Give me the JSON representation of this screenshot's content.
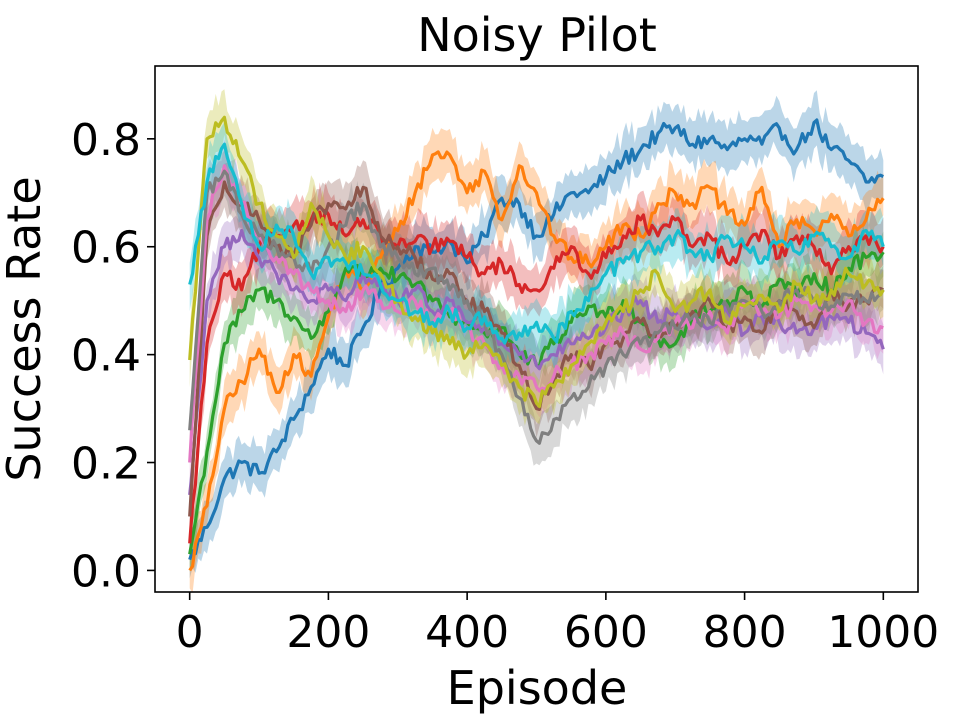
{
  "chart_data": {
    "type": "line",
    "title": "Noisy Pilot",
    "xlabel": "Episode",
    "ylabel": "Success Rate",
    "xlim": [
      -50,
      1050
    ],
    "ylim": [
      -0.04,
      0.935
    ],
    "xticks": [
      0,
      200,
      400,
      600,
      800,
      1000
    ],
    "xtick_labels": [
      "0",
      "200",
      "400",
      "600",
      "800",
      "1000"
    ],
    "yticks": [
      0.0,
      0.2,
      0.4,
      0.6,
      0.8
    ],
    "ytick_labels": [
      "0.0",
      "0.2",
      "0.4",
      "0.6",
      "0.8"
    ],
    "grid": false,
    "legend": "none",
    "series": [
      {
        "color": "#1f77b4",
        "x": [
          0,
          25,
          50,
          75,
          100,
          125,
          150,
          175,
          200,
          225,
          250,
          275,
          300,
          325,
          350,
          375,
          400,
          425,
          450,
          475,
          500,
          525,
          550,
          575,
          600,
          625,
          650,
          675,
          700,
          725,
          750,
          775,
          800,
          825,
          850,
          875,
          900,
          925,
          950,
          975,
          1000
        ],
        "y": [
          0.02,
          0.08,
          0.17,
          0.2,
          0.18,
          0.22,
          0.28,
          0.34,
          0.41,
          0.38,
          0.45,
          0.52,
          0.56,
          0.6,
          0.59,
          0.61,
          0.57,
          0.62,
          0.69,
          0.68,
          0.62,
          0.66,
          0.7,
          0.7,
          0.73,
          0.76,
          0.78,
          0.81,
          0.82,
          0.79,
          0.8,
          0.78,
          0.8,
          0.79,
          0.82,
          0.78,
          0.83,
          0.78,
          0.76,
          0.72,
          0.73
        ]
      },
      {
        "color": "#ff7f0e",
        "x": [
          0,
          25,
          50,
          75,
          100,
          125,
          150,
          175,
          200,
          225,
          250,
          275,
          300,
          325,
          350,
          375,
          400,
          425,
          450,
          475,
          500,
          525,
          550,
          575,
          600,
          625,
          650,
          675,
          700,
          725,
          750,
          775,
          800,
          825,
          850,
          875,
          900,
          925,
          950,
          975,
          1000
        ],
        "y": [
          0.0,
          0.12,
          0.3,
          0.35,
          0.41,
          0.33,
          0.4,
          0.36,
          0.47,
          0.56,
          0.52,
          0.58,
          0.63,
          0.7,
          0.77,
          0.77,
          0.7,
          0.74,
          0.65,
          0.75,
          0.7,
          0.62,
          0.58,
          0.57,
          0.6,
          0.64,
          0.62,
          0.68,
          0.7,
          0.68,
          0.71,
          0.66,
          0.64,
          0.71,
          0.6,
          0.65,
          0.63,
          0.66,
          0.62,
          0.65,
          0.69
        ]
      },
      {
        "color": "#2ca02c",
        "x": [
          0,
          25,
          50,
          75,
          100,
          125,
          150,
          175,
          200,
          225,
          250,
          275,
          300,
          325,
          350,
          375,
          400,
          425,
          450,
          475,
          500,
          525,
          550,
          575,
          600,
          625,
          650,
          675,
          700,
          725,
          750,
          775,
          800,
          825,
          850,
          875,
          900,
          925,
          950,
          975,
          1000
        ],
        "y": [
          0.03,
          0.22,
          0.42,
          0.48,
          0.52,
          0.5,
          0.47,
          0.43,
          0.48,
          0.56,
          0.55,
          0.56,
          0.54,
          0.53,
          0.5,
          0.47,
          0.46,
          0.44,
          0.45,
          0.4,
          0.38,
          0.42,
          0.46,
          0.49,
          0.47,
          0.5,
          0.46,
          0.43,
          0.42,
          0.47,
          0.48,
          0.5,
          0.52,
          0.49,
          0.54,
          0.51,
          0.55,
          0.52,
          0.56,
          0.58,
          0.59
        ]
      },
      {
        "color": "#d62728",
        "x": [
          0,
          25,
          50,
          75,
          100,
          125,
          150,
          175,
          200,
          225,
          250,
          275,
          300,
          325,
          350,
          375,
          400,
          425,
          450,
          475,
          500,
          525,
          550,
          575,
          600,
          625,
          650,
          675,
          700,
          725,
          750,
          775,
          800,
          825,
          850,
          875,
          900,
          925,
          950,
          975,
          1000
        ],
        "y": [
          0.05,
          0.42,
          0.55,
          0.52,
          0.6,
          0.62,
          0.64,
          0.65,
          0.66,
          0.62,
          0.65,
          0.62,
          0.6,
          0.61,
          0.6,
          0.61,
          0.58,
          0.55,
          0.57,
          0.53,
          0.52,
          0.56,
          0.6,
          0.55,
          0.58,
          0.62,
          0.65,
          0.62,
          0.65,
          0.6,
          0.62,
          0.57,
          0.6,
          0.63,
          0.58,
          0.62,
          0.6,
          0.55,
          0.6,
          0.62,
          0.6
        ]
      },
      {
        "color": "#9467bd",
        "x": [
          0,
          25,
          50,
          75,
          100,
          125,
          150,
          175,
          200,
          225,
          250,
          275,
          300,
          325,
          350,
          375,
          400,
          425,
          450,
          475,
          500,
          525,
          550,
          575,
          600,
          625,
          650,
          675,
          700,
          725,
          750,
          775,
          800,
          825,
          850,
          875,
          900,
          925,
          950,
          975,
          1000
        ],
        "y": [
          0.14,
          0.5,
          0.6,
          0.63,
          0.58,
          0.55,
          0.52,
          0.5,
          0.52,
          0.5,
          0.55,
          0.53,
          0.5,
          0.52,
          0.48,
          0.5,
          0.46,
          0.45,
          0.42,
          0.4,
          0.38,
          0.4,
          0.42,
          0.43,
          0.45,
          0.48,
          0.5,
          0.46,
          0.48,
          0.47,
          0.45,
          0.48,
          0.44,
          0.47,
          0.46,
          0.44,
          0.45,
          0.47,
          0.46,
          0.44,
          0.41
        ]
      },
      {
        "color": "#8c564b",
        "x": [
          0,
          25,
          50,
          75,
          100,
          125,
          150,
          175,
          200,
          225,
          250,
          275,
          300,
          325,
          350,
          375,
          400,
          425,
          450,
          475,
          500,
          525,
          550,
          575,
          600,
          625,
          650,
          675,
          700,
          725,
          750,
          775,
          800,
          825,
          850,
          875,
          900,
          925,
          950,
          975,
          1000
        ],
        "y": [
          0.1,
          0.62,
          0.72,
          0.68,
          0.65,
          0.6,
          0.58,
          0.64,
          0.68,
          0.67,
          0.71,
          0.62,
          0.6,
          0.58,
          0.54,
          0.55,
          0.5,
          0.48,
          0.44,
          0.38,
          0.3,
          0.35,
          0.4,
          0.38,
          0.42,
          0.43,
          0.46,
          0.44,
          0.45,
          0.48,
          0.5,
          0.45,
          0.47,
          0.44,
          0.5,
          0.48,
          0.45,
          0.52,
          0.49,
          0.5,
          0.52
        ]
      },
      {
        "color": "#e377c2",
        "x": [
          0,
          25,
          50,
          75,
          100,
          125,
          150,
          175,
          200,
          225,
          250,
          275,
          300,
          325,
          350,
          375,
          400,
          425,
          450,
          475,
          500,
          525,
          550,
          575,
          600,
          625,
          650,
          675,
          700,
          725,
          750,
          775,
          800,
          825,
          850,
          875,
          900,
          925,
          950,
          975,
          1000
        ],
        "y": [
          0.2,
          0.65,
          0.75,
          0.68,
          0.62,
          0.58,
          0.55,
          0.52,
          0.5,
          0.48,
          0.52,
          0.5,
          0.48,
          0.5,
          0.46,
          0.48,
          0.45,
          0.42,
          0.38,
          0.36,
          0.34,
          0.36,
          0.38,
          0.4,
          0.42,
          0.44,
          0.41,
          0.43,
          0.46,
          0.45,
          0.48,
          0.44,
          0.5,
          0.48,
          0.47,
          0.5,
          0.49,
          0.48,
          0.5,
          0.46,
          0.45
        ]
      },
      {
        "color": "#7f7f7f",
        "x": [
          0,
          25,
          50,
          75,
          100,
          125,
          150,
          175,
          200,
          225,
          250,
          275,
          300,
          325,
          350,
          375,
          400,
          425,
          450,
          475,
          500,
          525,
          550,
          575,
          600,
          625,
          650,
          675,
          700,
          725,
          750,
          775,
          800,
          825,
          850,
          875,
          900,
          925,
          950,
          975,
          1000
        ],
        "y": [
          0.26,
          0.7,
          0.74,
          0.66,
          0.62,
          0.6,
          0.58,
          0.55,
          0.6,
          0.64,
          0.68,
          0.6,
          0.58,
          0.55,
          0.56,
          0.52,
          0.5,
          0.46,
          0.4,
          0.32,
          0.24,
          0.28,
          0.32,
          0.34,
          0.38,
          0.4,
          0.42,
          0.44,
          0.45,
          0.47,
          0.46,
          0.49,
          0.5,
          0.48,
          0.5,
          0.52,
          0.5,
          0.49,
          0.51,
          0.5,
          0.52
        ]
      },
      {
        "color": "#bcbd22",
        "x": [
          0,
          25,
          50,
          75,
          100,
          125,
          150,
          175,
          200,
          225,
          250,
          275,
          300,
          325,
          350,
          375,
          400,
          425,
          450,
          475,
          500,
          525,
          550,
          575,
          600,
          625,
          650,
          675,
          700,
          725,
          750,
          775,
          800,
          825,
          850,
          875,
          900,
          925,
          950,
          975,
          1000
        ],
        "y": [
          0.39,
          0.8,
          0.84,
          0.76,
          0.68,
          0.62,
          0.58,
          0.68,
          0.62,
          0.58,
          0.6,
          0.55,
          0.5,
          0.47,
          0.44,
          0.42,
          0.4,
          0.42,
          0.38,
          0.34,
          0.31,
          0.34,
          0.38,
          0.42,
          0.46,
          0.48,
          0.52,
          0.55,
          0.48,
          0.5,
          0.52,
          0.46,
          0.49,
          0.51,
          0.48,
          0.53,
          0.5,
          0.52,
          0.55,
          0.53,
          0.52
        ]
      },
      {
        "color": "#17becf",
        "x": [
          0,
          25,
          50,
          75,
          100,
          125,
          150,
          175,
          200,
          225,
          250,
          275,
          300,
          325,
          350,
          375,
          400,
          425,
          450,
          475,
          500,
          525,
          550,
          575,
          600,
          625,
          650,
          675,
          700,
          725,
          750,
          775,
          800,
          825,
          850,
          875,
          900,
          925,
          950,
          975,
          1000
        ],
        "y": [
          0.53,
          0.72,
          0.79,
          0.68,
          0.6,
          0.64,
          0.62,
          0.55,
          0.58,
          0.57,
          0.55,
          0.53,
          0.5,
          0.48,
          0.46,
          0.48,
          0.45,
          0.47,
          0.43,
          0.44,
          0.46,
          0.43,
          0.48,
          0.5,
          0.55,
          0.57,
          0.59,
          0.6,
          0.62,
          0.59,
          0.58,
          0.62,
          0.6,
          0.57,
          0.61,
          0.59,
          0.62,
          0.6,
          0.58,
          0.63,
          0.6
        ]
      }
    ]
  }
}
